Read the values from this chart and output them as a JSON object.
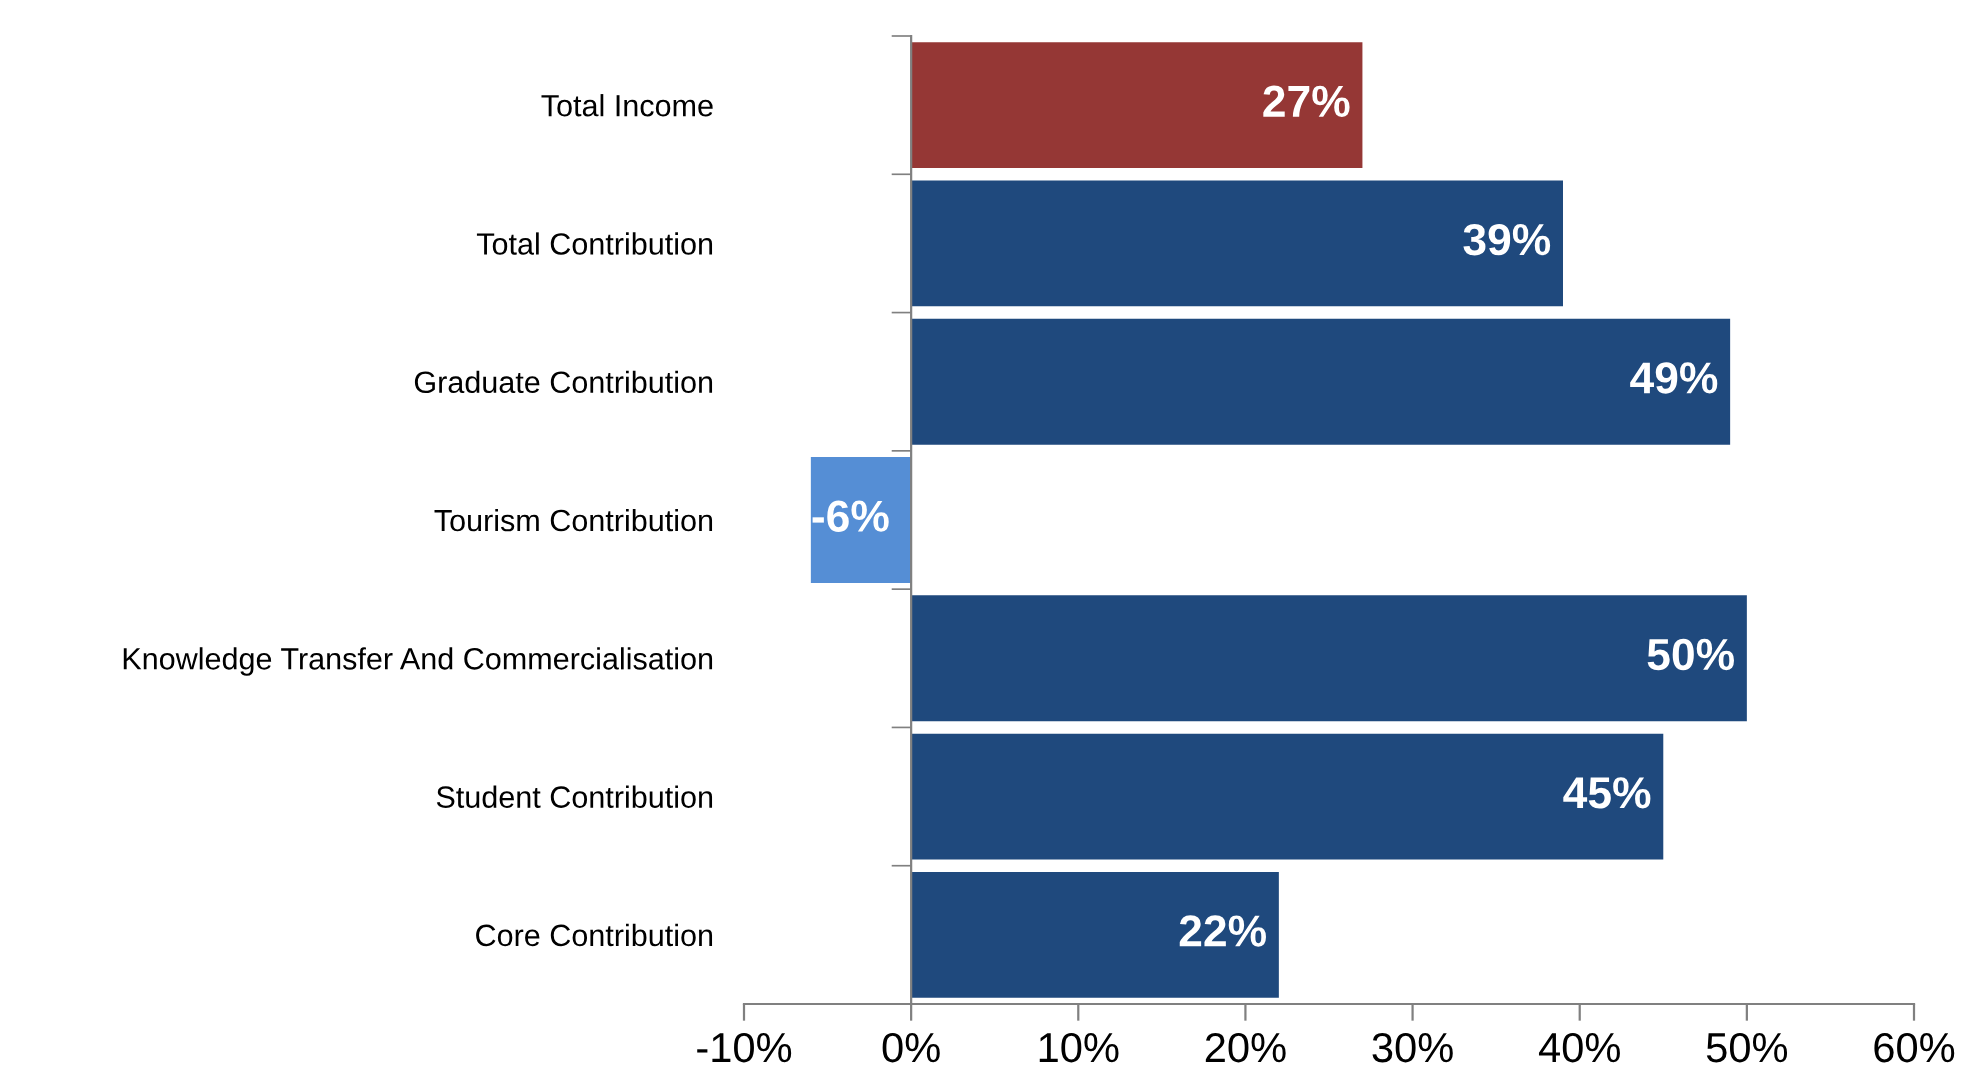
{
  "chart_data": {
    "type": "bar",
    "orientation": "horizontal",
    "categories": [
      "Total Income",
      "Total Contribution",
      "Graduate Contribution",
      "Tourism Contribution",
      "Knowledge Transfer And Commercialisation",
      "Student Contribution",
      "Core Contribution"
    ],
    "values": [
      27,
      39,
      49,
      -6,
      50,
      45,
      22
    ],
    "colors": [
      "#953735",
      "#1f497d",
      "#1f497d",
      "#558ed5",
      "#1f497d",
      "#1f497d",
      "#1f497d"
    ],
    "value_labels": [
      "27%",
      "39%",
      "49%",
      "-6%",
      "50%",
      "45%",
      "22%"
    ],
    "xlim": [
      -10,
      60
    ],
    "xticks": [
      {
        "value": -10,
        "label": "-10%"
      },
      {
        "value": 0,
        "label": "0%"
      },
      {
        "value": 10,
        "label": "10%"
      },
      {
        "value": 20,
        "label": "20%"
      },
      {
        "value": 30,
        "label": "30%"
      },
      {
        "value": 40,
        "label": "40%"
      },
      {
        "value": 50,
        "label": "50%"
      },
      {
        "value": 60,
        "label": "60%"
      }
    ],
    "legend": false
  }
}
